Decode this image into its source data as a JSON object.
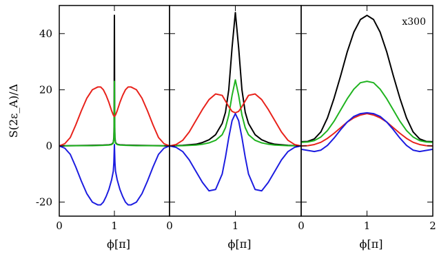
{
  "chart_data": [
    {
      "type": "line",
      "panel": "left",
      "xlabel": "ϕ[π]",
      "ylabel": "S(2ε_A)/Δ",
      "xlim": [
        0,
        2
      ],
      "ylim": [
        -25,
        50
      ],
      "x_ticks": [
        {
          "v": 0,
          "label": "0"
        },
        {
          "v": 1,
          "label": "1"
        }
      ],
      "y_ticks": [
        {
          "v": -20,
          "label": "-20"
        },
        {
          "v": 0,
          "label": "0"
        },
        {
          "v": 20,
          "label": "20"
        },
        {
          "v": 40,
          "label": "40"
        }
      ],
      "annotation": "",
      "series": [
        {
          "color": "#000000",
          "x": [
            0,
            0.2,
            0.4,
            0.6,
            0.8,
            0.9,
            0.95,
            0.98,
            0.99,
            0.995,
            1.0,
            1.005,
            1.01,
            1.02,
            1.05,
            1.1,
            1.2,
            1.4,
            1.6,
            1.8,
            2.0
          ],
          "y": [
            0,
            0.1,
            0.15,
            0.2,
            0.3,
            0.4,
            0.6,
            1.2,
            3.0,
            8.0,
            46.5,
            8.0,
            3.0,
            1.2,
            0.6,
            0.4,
            0.3,
            0.2,
            0.15,
            0.1,
            0
          ]
        },
        {
          "color": "#1fb31f",
          "x": [
            0,
            0.2,
            0.4,
            0.6,
            0.8,
            0.9,
            0.95,
            0.98,
            0.99,
            0.995,
            1.0,
            1.005,
            1.01,
            1.02,
            1.05,
            1.1,
            1.2,
            1.4,
            1.6,
            1.8,
            2.0
          ],
          "y": [
            0,
            0.05,
            0.1,
            0.1,
            0.2,
            0.3,
            0.5,
            1.0,
            2.5,
            6.0,
            23.0,
            6.0,
            2.5,
            1.0,
            0.5,
            0.3,
            0.2,
            0.1,
            0.1,
            0.05,
            0
          ]
        },
        {
          "color": "#e8221b",
          "x": [
            0,
            0.1,
            0.2,
            0.3,
            0.4,
            0.5,
            0.6,
            0.7,
            0.75,
            0.8,
            0.85,
            0.9,
            0.95,
            0.98,
            1.0,
            1.02,
            1.05,
            1.1,
            1.15,
            1.2,
            1.25,
            1.3,
            1.4,
            1.5,
            1.6,
            1.7,
            1.8,
            1.9,
            2.0
          ],
          "y": [
            0,
            0.8,
            3.0,
            7.5,
            12.5,
            17.0,
            20.0,
            21.0,
            21.0,
            20.0,
            18.0,
            15.5,
            12.5,
            11.0,
            10.5,
            11.0,
            12.5,
            15.5,
            18.0,
            20.0,
            21.0,
            21.0,
            20.0,
            17.0,
            12.5,
            7.5,
            3.0,
            0.8,
            0
          ]
        },
        {
          "color": "#1c1ce0",
          "x": [
            0,
            0.1,
            0.2,
            0.3,
            0.4,
            0.5,
            0.6,
            0.7,
            0.75,
            0.8,
            0.85,
            0.9,
            0.95,
            0.98,
            0.99,
            1.0,
            1.01,
            1.02,
            1.05,
            1.1,
            1.15,
            1.2,
            1.25,
            1.3,
            1.4,
            1.5,
            1.6,
            1.7,
            1.8,
            1.9,
            2.0
          ],
          "y": [
            0,
            -0.8,
            -3.0,
            -7.5,
            -12.5,
            -17.0,
            -20.0,
            -21.0,
            -21.0,
            -20.0,
            -18.0,
            -15.5,
            -12.0,
            -9.0,
            -6.0,
            0.5,
            -6.0,
            -9.0,
            -12.0,
            -15.5,
            -18.0,
            -20.0,
            -21.0,
            -21.0,
            -20.0,
            -17.0,
            -12.5,
            -7.5,
            -3.0,
            -0.8,
            0
          ]
        }
      ]
    },
    {
      "type": "line",
      "panel": "middle",
      "xlabel": "ϕ[π]",
      "xlim": [
        0,
        2
      ],
      "ylim": [
        -25,
        50
      ],
      "x_ticks": [
        {
          "v": 0,
          "label": "0"
        },
        {
          "v": 1,
          "label": "1"
        }
      ],
      "y_ticks": [],
      "annotation": "",
      "series": [
        {
          "color": "#000000",
          "x": [
            0,
            0.2,
            0.4,
            0.5,
            0.6,
            0.7,
            0.8,
            0.85,
            0.9,
            0.95,
            1.0,
            1.05,
            1.1,
            1.15,
            1.2,
            1.3,
            1.4,
            1.5,
            1.6,
            1.8,
            2.0
          ],
          "y": [
            0,
            0.2,
            0.6,
            1.2,
            2.2,
            4.0,
            8.0,
            12.0,
            20.0,
            35.0,
            47.5,
            35.0,
            20.0,
            12.0,
            8.0,
            4.0,
            2.2,
            1.2,
            0.6,
            0.2,
            0
          ]
        },
        {
          "color": "#1fb31f",
          "x": [
            0,
            0.2,
            0.4,
            0.5,
            0.6,
            0.7,
            0.8,
            0.85,
            0.9,
            0.95,
            1.0,
            1.05,
            1.1,
            1.15,
            1.2,
            1.3,
            1.4,
            1.5,
            1.6,
            1.8,
            2.0
          ],
          "y": [
            0,
            0.1,
            0.3,
            0.6,
            1.1,
            2.0,
            4.0,
            6.5,
            11.0,
            18.0,
            23.5,
            18.0,
            11.0,
            6.5,
            4.0,
            2.0,
            1.1,
            0.6,
            0.3,
            0.1,
            0
          ]
        },
        {
          "color": "#e8221b",
          "x": [
            0,
            0.1,
            0.2,
            0.3,
            0.4,
            0.5,
            0.6,
            0.7,
            0.8,
            0.85,
            0.9,
            0.95,
            1.0,
            1.05,
            1.1,
            1.15,
            1.2,
            1.3,
            1.4,
            1.5,
            1.6,
            1.7,
            1.8,
            1.9,
            2.0
          ],
          "y": [
            0,
            0.5,
            2.0,
            5.0,
            9.0,
            13.0,
            16.5,
            18.5,
            18.0,
            16.0,
            14.0,
            12.3,
            11.8,
            12.3,
            14.0,
            16.0,
            18.0,
            18.5,
            16.5,
            13.0,
            9.0,
            5.0,
            2.0,
            0.5,
            0
          ]
        },
        {
          "color": "#1c1ce0",
          "x": [
            0,
            0.1,
            0.2,
            0.3,
            0.4,
            0.5,
            0.6,
            0.7,
            0.8,
            0.85,
            0.9,
            0.95,
            1.0,
            1.05,
            1.1,
            1.15,
            1.2,
            1.3,
            1.4,
            1.5,
            1.6,
            1.7,
            1.8,
            1.9,
            2.0
          ],
          "y": [
            0,
            -0.5,
            -2.0,
            -5.0,
            -9.0,
            -13.0,
            -16.0,
            -15.5,
            -10.0,
            -4.0,
            3.0,
            9.0,
            11.5,
            9.0,
            3.0,
            -4.0,
            -10.0,
            -15.5,
            -16.0,
            -13.0,
            -9.0,
            -5.0,
            -2.0,
            -0.5,
            0
          ]
        }
      ]
    },
    {
      "type": "line",
      "panel": "right",
      "xlabel": "ϕ[π]",
      "xlim": [
        0,
        2
      ],
      "ylim": [
        -25,
        50
      ],
      "x_ticks": [
        {
          "v": 0,
          "label": "0"
        },
        {
          "v": 1,
          "label": "1"
        },
        {
          "v": 2,
          "label": "2"
        }
      ],
      "y_ticks": [],
      "annotation": "x300",
      "series": [
        {
          "color": "#000000",
          "x": [
            0,
            0.1,
            0.2,
            0.3,
            0.4,
            0.5,
            0.6,
            0.7,
            0.8,
            0.9,
            1.0,
            1.1,
            1.2,
            1.3,
            1.4,
            1.5,
            1.6,
            1.7,
            1.8,
            1.9,
            2.0
          ],
          "y": [
            1.5,
            1.6,
            2.5,
            5.0,
            10.0,
            17.0,
            25.0,
            33.5,
            40.5,
            45.0,
            46.5,
            45.0,
            40.5,
            33.5,
            25.0,
            17.0,
            10.0,
            5.0,
            2.5,
            1.6,
            1.5
          ]
        },
        {
          "color": "#1fb31f",
          "x": [
            0,
            0.1,
            0.2,
            0.3,
            0.4,
            0.5,
            0.6,
            0.7,
            0.8,
            0.9,
            1.0,
            1.1,
            1.2,
            1.3,
            1.4,
            1.5,
            1.6,
            1.7,
            1.8,
            1.9,
            2.0
          ],
          "y": [
            1.3,
            1.4,
            1.9,
            3.2,
            5.5,
            8.8,
            12.8,
            16.8,
            20.2,
            22.5,
            23.0,
            22.5,
            20.2,
            16.8,
            12.8,
            8.8,
            5.5,
            3.2,
            1.9,
            1.4,
            1.3
          ]
        },
        {
          "color": "#e8221b",
          "x": [
            0,
            0.1,
            0.2,
            0.3,
            0.4,
            0.5,
            0.6,
            0.7,
            0.8,
            0.9,
            1.0,
            1.1,
            1.2,
            1.3,
            1.4,
            1.5,
            1.6,
            1.7,
            1.8,
            1.9,
            2.0
          ],
          "y": [
            0,
            0.1,
            0.5,
            1.3,
            2.7,
            4.5,
            6.5,
            8.5,
            10.0,
            11.0,
            11.5,
            11.0,
            10.0,
            8.5,
            6.5,
            4.5,
            2.7,
            1.3,
            0.5,
            0.1,
            0
          ]
        },
        {
          "color": "#1c1ce0",
          "x": [
            0,
            0.1,
            0.2,
            0.3,
            0.4,
            0.5,
            0.6,
            0.7,
            0.8,
            0.9,
            1.0,
            1.1,
            1.2,
            1.3,
            1.4,
            1.5,
            1.6,
            1.7,
            1.8,
            1.9,
            2.0
          ],
          "y": [
            -1.2,
            -1.6,
            -2.0,
            -1.5,
            0.2,
            2.8,
            5.8,
            8.5,
            10.5,
            11.5,
            11.8,
            11.5,
            10.5,
            8.5,
            5.8,
            2.8,
            0.2,
            -1.5,
            -2.0,
            -1.6,
            -1.2
          ]
        }
      ]
    }
  ]
}
